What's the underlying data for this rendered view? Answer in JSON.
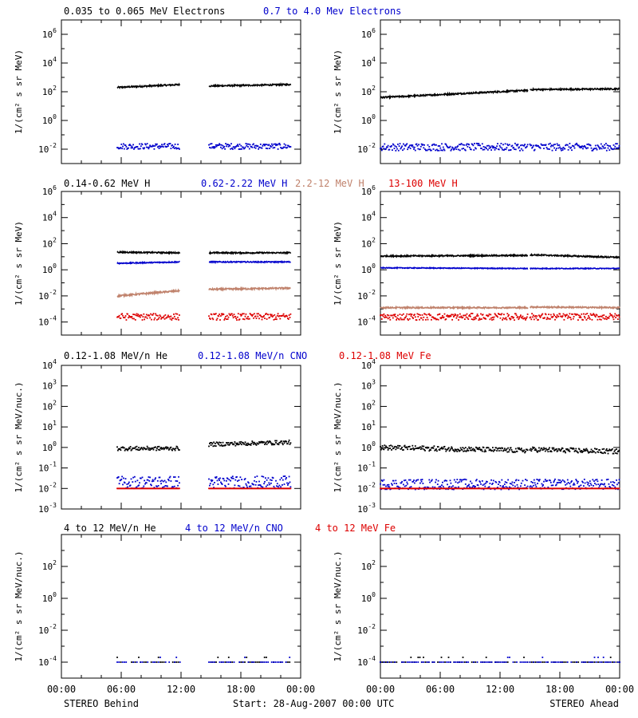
{
  "rows": [
    {
      "legend": [
        {
          "text": "0.035 to 0.065 MeV Electrons",
          "color": "#000000"
        },
        {
          "text": "0.7 to 4.0 Mev Electrons",
          "color": "#0000cc"
        }
      ],
      "ylabel": "1/(cm² s sr MeV)",
      "ylim_log10": [
        -3,
        7
      ],
      "ytick_exponents": [
        -2,
        0,
        2,
        4,
        6
      ],
      "panels": [
        {
          "id": "behind",
          "series": [
            {
              "color": "#000000",
              "style": "line",
              "segments": [
                [
                  5.6,
                  11.9,
                  2.3,
                  2.5
                ],
                [
                  14.8,
                  23.0,
                  2.4,
                  2.5
                ]
              ],
              "noise": 0.05
            },
            {
              "color": "#0000cc",
              "style": "dots",
              "segments": [
                [
                  5.6,
                  11.9,
                  -1.8,
                  -1.8
                ],
                [
                  14.8,
                  23.0,
                  -1.8,
                  -1.8
                ]
              ],
              "noise": 0.2
            }
          ]
        },
        {
          "id": "ahead",
          "series": [
            {
              "color": "#000000",
              "style": "line",
              "segments": [
                [
                  0.0,
                  14.8,
                  1.6,
                  2.1
                ],
                [
                  15.0,
                  24.0,
                  2.15,
                  2.2
                ]
              ],
              "noise": 0.05
            },
            {
              "color": "#0000cc",
              "style": "dots",
              "segments": [
                [
                  0.0,
                  14.8,
                  -1.85,
                  -1.85
                ],
                [
                  15.0,
                  24.0,
                  -1.85,
                  -1.85
                ]
              ],
              "noise": 0.25
            }
          ]
        }
      ]
    },
    {
      "legend": [
        {
          "text": "0.14-0.62 MeV H",
          "color": "#000000"
        },
        {
          "text": "0.62-2.22 MeV H",
          "color": "#0000cc"
        },
        {
          "text": "2.2-12 MeV H",
          "color": "#c0826c"
        },
        {
          "text": "13-100 MeV H",
          "color": "#dd0000"
        }
      ],
      "ylabel": "1/(cm² s sr MeV)",
      "ylim_log10": [
        -5,
        6
      ],
      "ytick_exponents": [
        -4,
        -2,
        0,
        2,
        4,
        6
      ],
      "panels": [
        {
          "id": "behind",
          "series": [
            {
              "color": "#000000",
              "style": "line",
              "segments": [
                [
                  5.6,
                  11.9,
                  1.35,
                  1.3
                ],
                [
                  14.8,
                  23.0,
                  1.3,
                  1.3
                ]
              ],
              "noise": 0.05
            },
            {
              "color": "#0000cc",
              "style": "line",
              "segments": [
                [
                  5.6,
                  11.9,
                  0.5,
                  0.6
                ],
                [
                  14.8,
                  23.0,
                  0.6,
                  0.6
                ]
              ],
              "noise": 0.04
            },
            {
              "color": "#c0826c",
              "style": "line",
              "segments": [
                [
                  5.6,
                  11.9,
                  -2.0,
                  -1.6
                ],
                [
                  14.8,
                  23.0,
                  -1.5,
                  -1.4
                ]
              ],
              "noise": 0.06
            },
            {
              "color": "#dd0000",
              "style": "dots",
              "segments": [
                [
                  5.6,
                  11.9,
                  -3.6,
                  -3.6
                ],
                [
                  14.8,
                  23.0,
                  -3.6,
                  -3.6
                ]
              ],
              "noise": 0.25
            }
          ]
        },
        {
          "id": "ahead",
          "series": [
            {
              "color": "#000000",
              "style": "line",
              "segments": [
                [
                  0.0,
                  14.8,
                  1.05,
                  1.1
                ],
                [
                  15.0,
                  24.0,
                  1.15,
                  0.95
                ]
              ],
              "noise": 0.05
            },
            {
              "color": "#0000cc",
              "style": "line",
              "segments": [
                [
                  0.0,
                  14.8,
                  0.15,
                  0.1
                ],
                [
                  15.0,
                  24.0,
                  0.1,
                  0.1
                ]
              ],
              "noise": 0.03
            },
            {
              "color": "#c0826c",
              "style": "line",
              "segments": [
                [
                  0.0,
                  14.8,
                  -2.9,
                  -2.9
                ],
                [
                  15.0,
                  24.0,
                  -2.85,
                  -2.9
                ]
              ],
              "noise": 0.05
            },
            {
              "color": "#dd0000",
              "style": "dots",
              "segments": [
                [
                  0.0,
                  14.8,
                  -3.6,
                  -3.6
                ],
                [
                  15.0,
                  24.0,
                  -3.6,
                  -3.6
                ]
              ],
              "noise": 0.25
            }
          ]
        }
      ]
    },
    {
      "legend": [
        {
          "text": "0.12-1.08 MeV/n He",
          "color": "#000000"
        },
        {
          "text": "0.12-1.08 MeV/n CNO",
          "color": "#0000cc"
        },
        {
          "text": "0.12-1.08 MeV Fe",
          "color": "#dd0000"
        }
      ],
      "ylabel": "1/(cm² s sr MeV/nuc.)",
      "ylim_log10": [
        -3,
        4
      ],
      "ytick_exponents": [
        -3,
        -2,
        -1,
        0,
        1,
        2,
        3,
        4
      ],
      "panels": [
        {
          "id": "behind",
          "series": [
            {
              "color": "#000000",
              "style": "dots",
              "segments": [
                [
                  5.6,
                  11.9,
                  -0.05,
                  -0.05
                ],
                [
                  14.8,
                  23.0,
                  0.15,
                  0.25
                ]
              ],
              "noise": 0.1
            },
            {
              "color": "#0000cc",
              "style": "dots",
              "segments": [
                [
                  5.6,
                  11.9,
                  -1.7,
                  -1.7
                ],
                [
                  14.8,
                  23.0,
                  -1.7,
                  -1.7
                ]
              ],
              "noise": 0.3
            },
            {
              "color": "#dd0000",
              "style": "dots",
              "segments": [
                [
                  5.6,
                  11.9,
                  -2.0,
                  -2.0
                ],
                [
                  14.8,
                  23.0,
                  -2.0,
                  -2.0
                ]
              ],
              "noise": 0.0
            }
          ]
        },
        {
          "id": "ahead",
          "series": [
            {
              "color": "#000000",
              "style": "dots",
              "segments": [
                [
                  0.0,
                  14.8,
                  0.0,
                  -0.15
                ],
                [
                  15.0,
                  24.0,
                  -0.1,
                  -0.2
                ]
              ],
              "noise": 0.12
            },
            {
              "color": "#0000cc",
              "style": "dots",
              "segments": [
                [
                  0.0,
                  14.8,
                  -1.8,
                  -1.8
                ],
                [
                  15.0,
                  24.0,
                  -1.8,
                  -1.8
                ]
              ],
              "noise": 0.25
            },
            {
              "color": "#dd0000",
              "style": "dots",
              "segments": [
                [
                  0.0,
                  14.8,
                  -2.0,
                  -2.0
                ],
                [
                  15.0,
                  24.0,
                  -2.0,
                  -2.0
                ]
              ],
              "noise": 0.0
            }
          ]
        }
      ]
    },
    {
      "legend": [
        {
          "text": "4 to 12 MeV/n He",
          "color": "#000000"
        },
        {
          "text": "4 to 12 MeV/n CNO",
          "color": "#0000cc"
        },
        {
          "text": "4 to 12 MeV Fe",
          "color": "#dd0000"
        }
      ],
      "ylabel": "1/(cm² s sr MeV/nuc.)",
      "ylim_log10": [
        -5,
        4
      ],
      "ytick_exponents": [
        -4,
        -2,
        0,
        2
      ],
      "panels": [
        {
          "id": "behind",
          "series": [
            {
              "color": "#000000",
              "style": "dots",
              "segments": [
                [
                  5.6,
                  11.9,
                  -4.0,
                  -4.0
                ],
                [
                  14.8,
                  23.0,
                  -4.0,
                  -4.0
                ]
              ],
              "noise": 0.0,
              "sparse": true
            },
            {
              "color": "#0000cc",
              "style": "dots",
              "segments": [
                [
                  5.6,
                  11.9,
                  -4.0,
                  -4.0
                ],
                [
                  14.8,
                  23.0,
                  -4.0,
                  -4.0
                ]
              ],
              "noise": 0.0,
              "sparse": true
            }
          ]
        },
        {
          "id": "ahead",
          "series": [
            {
              "color": "#000000",
              "style": "dots",
              "segments": [
                [
                  0.0,
                  14.8,
                  -4.0,
                  -4.0
                ],
                [
                  15.0,
                  24.0,
                  -4.0,
                  -4.0
                ]
              ],
              "noise": 0.0,
              "sparse": true
            },
            {
              "color": "#0000cc",
              "style": "dots",
              "segments": [
                [
                  0.0,
                  14.8,
                  -4.0,
                  -4.0
                ],
                [
                  15.0,
                  24.0,
                  -4.0,
                  -4.0
                ]
              ],
              "noise": 0.0,
              "sparse": true
            }
          ]
        }
      ]
    }
  ],
  "x_axis": {
    "range_hours": [
      0,
      24
    ],
    "tick_hours": [
      0,
      6,
      12,
      18,
      24
    ],
    "tick_labels": [
      "00:00",
      "06:00",
      "12:00",
      "18:00",
      "00:00"
    ]
  },
  "footer": {
    "left": "STEREO Behind",
    "center": "Start: 28-Aug-2007 00:00 UTC",
    "right": "STEREO Ahead"
  }
}
